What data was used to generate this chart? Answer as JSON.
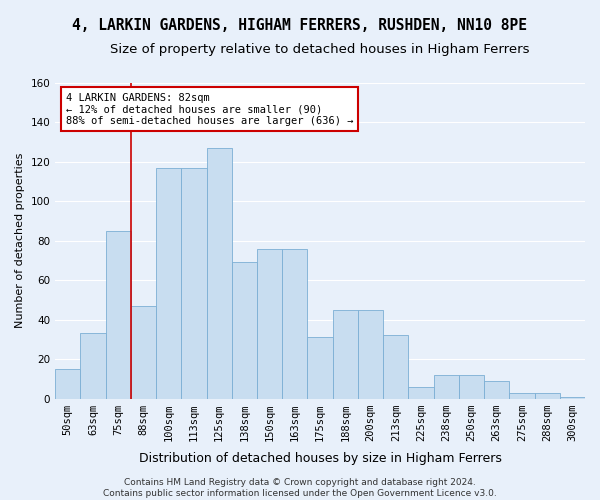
{
  "title": "4, LARKIN GARDENS, HIGHAM FERRERS, RUSHDEN, NN10 8PE",
  "subtitle": "Size of property relative to detached houses in Higham Ferrers",
  "xlabel": "Distribution of detached houses by size in Higham Ferrers",
  "ylabel": "Number of detached properties",
  "bar_color": "#c8ddf0",
  "bar_edge_color": "#7baed4",
  "background_color": "#e8f0fa",
  "fig_background_color": "#e8f0fa",
  "grid_color": "#ffffff",
  "categories": [
    "50sqm",
    "63sqm",
    "75sqm",
    "88sqm",
    "100sqm",
    "113sqm",
    "125sqm",
    "138sqm",
    "150sqm",
    "163sqm",
    "175sqm",
    "188sqm",
    "200sqm",
    "213sqm",
    "225sqm",
    "238sqm",
    "250sqm",
    "263sqm",
    "275sqm",
    "288sqm",
    "300sqm"
  ],
  "values": [
    15,
    33,
    85,
    47,
    117,
    117,
    127,
    69,
    76,
    76,
    31,
    45,
    45,
    32,
    6,
    12,
    12,
    9,
    3,
    3,
    1
  ],
  "ylim": [
    0,
    160
  ],
  "yticks": [
    0,
    20,
    40,
    60,
    80,
    100,
    120,
    140,
    160
  ],
  "annotation_text": "4 LARKIN GARDENS: 82sqm\n← 12% of detached houses are smaller (90)\n88% of semi-detached houses are larger (636) →",
  "annotation_box_color": "#ffffff",
  "annotation_border_color": "#cc0000",
  "footer": "Contains HM Land Registry data © Crown copyright and database right 2024.\nContains public sector information licensed under the Open Government Licence v3.0.",
  "title_fontsize": 10.5,
  "subtitle_fontsize": 9.5,
  "xlabel_fontsize": 9,
  "ylabel_fontsize": 8,
  "tick_fontsize": 7.5,
  "footer_fontsize": 6.5,
  "annotation_fontsize": 7.5
}
